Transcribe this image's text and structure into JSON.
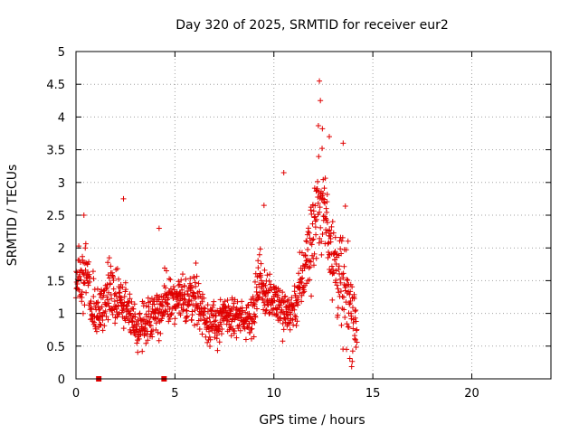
{
  "chart_data": {
    "type": "scatter",
    "title": "Day 320 of 2025, SRMTID for receiver eur2",
    "xlabel": "GPS time / hours",
    "ylabel": "SRMTID / TECUs",
    "xlim": [
      0,
      24
    ],
    "ylim": [
      0,
      5
    ],
    "x_ticks": [
      0,
      5,
      10,
      15,
      20
    ],
    "y_ticks": [
      0,
      0.5,
      1,
      1.5,
      2,
      2.5,
      3,
      3.5,
      4,
      4.5,
      5
    ],
    "x_tick_labels": [
      "0",
      "5",
      "10",
      "15",
      "20"
    ],
    "y_tick_labels": [
      "0",
      "0.5",
      "1",
      "1.5",
      "2",
      "2.5",
      "3",
      "3.5",
      "4",
      "4.5",
      "5"
    ],
    "grid": true,
    "marker": "+",
    "color": "#e00000",
    "data_start_hour": 0.0,
    "data_end_hour": 14.2,
    "sample_interval_hours": 0.012,
    "envelope": [
      {
        "hour": 0.0,
        "median": 1.45,
        "spread": 0.45
      },
      {
        "hour": 0.5,
        "median": 1.6,
        "spread": 0.6
      },
      {
        "hour": 1.0,
        "median": 0.95,
        "spread": 0.4
      },
      {
        "hour": 1.5,
        "median": 1.25,
        "spread": 0.45
      },
      {
        "hour": 2.0,
        "median": 1.2,
        "spread": 0.5
      },
      {
        "hour": 2.5,
        "median": 1.2,
        "spread": 0.45
      },
      {
        "hour": 3.0,
        "median": 0.75,
        "spread": 0.3
      },
      {
        "hour": 3.5,
        "median": 0.85,
        "spread": 0.35
      },
      {
        "hour": 4.0,
        "median": 1.05,
        "spread": 0.4
      },
      {
        "hour": 4.5,
        "median": 1.1,
        "spread": 0.45
      },
      {
        "hour": 5.0,
        "median": 1.2,
        "spread": 0.4
      },
      {
        "hour": 5.5,
        "median": 1.2,
        "spread": 0.4
      },
      {
        "hour": 6.0,
        "median": 1.3,
        "spread": 0.45
      },
      {
        "hour": 6.5,
        "median": 0.95,
        "spread": 0.35
      },
      {
        "hour": 7.0,
        "median": 0.8,
        "spread": 0.35
      },
      {
        "hour": 7.5,
        "median": 0.95,
        "spread": 0.35
      },
      {
        "hour": 8.0,
        "median": 0.95,
        "spread": 0.3
      },
      {
        "hour": 8.5,
        "median": 0.9,
        "spread": 0.3
      },
      {
        "hour": 9.0,
        "median": 1.05,
        "spread": 0.35
      },
      {
        "hour": 9.3,
        "median": 1.6,
        "spread": 0.55
      },
      {
        "hour": 9.6,
        "median": 1.2,
        "spread": 0.35
      },
      {
        "hour": 10.0,
        "median": 1.3,
        "spread": 0.4
      },
      {
        "hour": 10.5,
        "median": 1.0,
        "spread": 0.4
      },
      {
        "hour": 11.0,
        "median": 1.05,
        "spread": 0.4
      },
      {
        "hour": 11.5,
        "median": 1.6,
        "spread": 0.5
      },
      {
        "hour": 12.0,
        "median": 2.3,
        "spread": 0.8
      },
      {
        "hour": 12.3,
        "median": 2.9,
        "spread": 0.9
      },
      {
        "hour": 12.7,
        "median": 2.4,
        "spread": 0.9
      },
      {
        "hour": 13.0,
        "median": 1.9,
        "spread": 0.8
      },
      {
        "hour": 13.4,
        "median": 1.4,
        "spread": 0.9
      },
      {
        "hour": 13.7,
        "median": 1.3,
        "spread": 1.0
      },
      {
        "hour": 14.2,
        "median": 0.8,
        "spread": 0.45
      }
    ],
    "notable_points": [
      {
        "x": 12.3,
        "y": 4.55
      },
      {
        "x": 12.35,
        "y": 4.25
      },
      {
        "x": 12.45,
        "y": 3.82
      },
      {
        "x": 12.8,
        "y": 3.7
      },
      {
        "x": 13.5,
        "y": 3.6
      },
      {
        "x": 10.5,
        "y": 3.15
      },
      {
        "x": 2.4,
        "y": 2.75
      },
      {
        "x": 4.2,
        "y": 2.3
      },
      {
        "x": 0.4,
        "y": 2.5
      },
      {
        "x": 9.5,
        "y": 2.65
      }
    ],
    "bottom_markers": [
      {
        "x": 1.15,
        "y": 0
      },
      {
        "x": 4.45,
        "y": 0
      }
    ]
  }
}
